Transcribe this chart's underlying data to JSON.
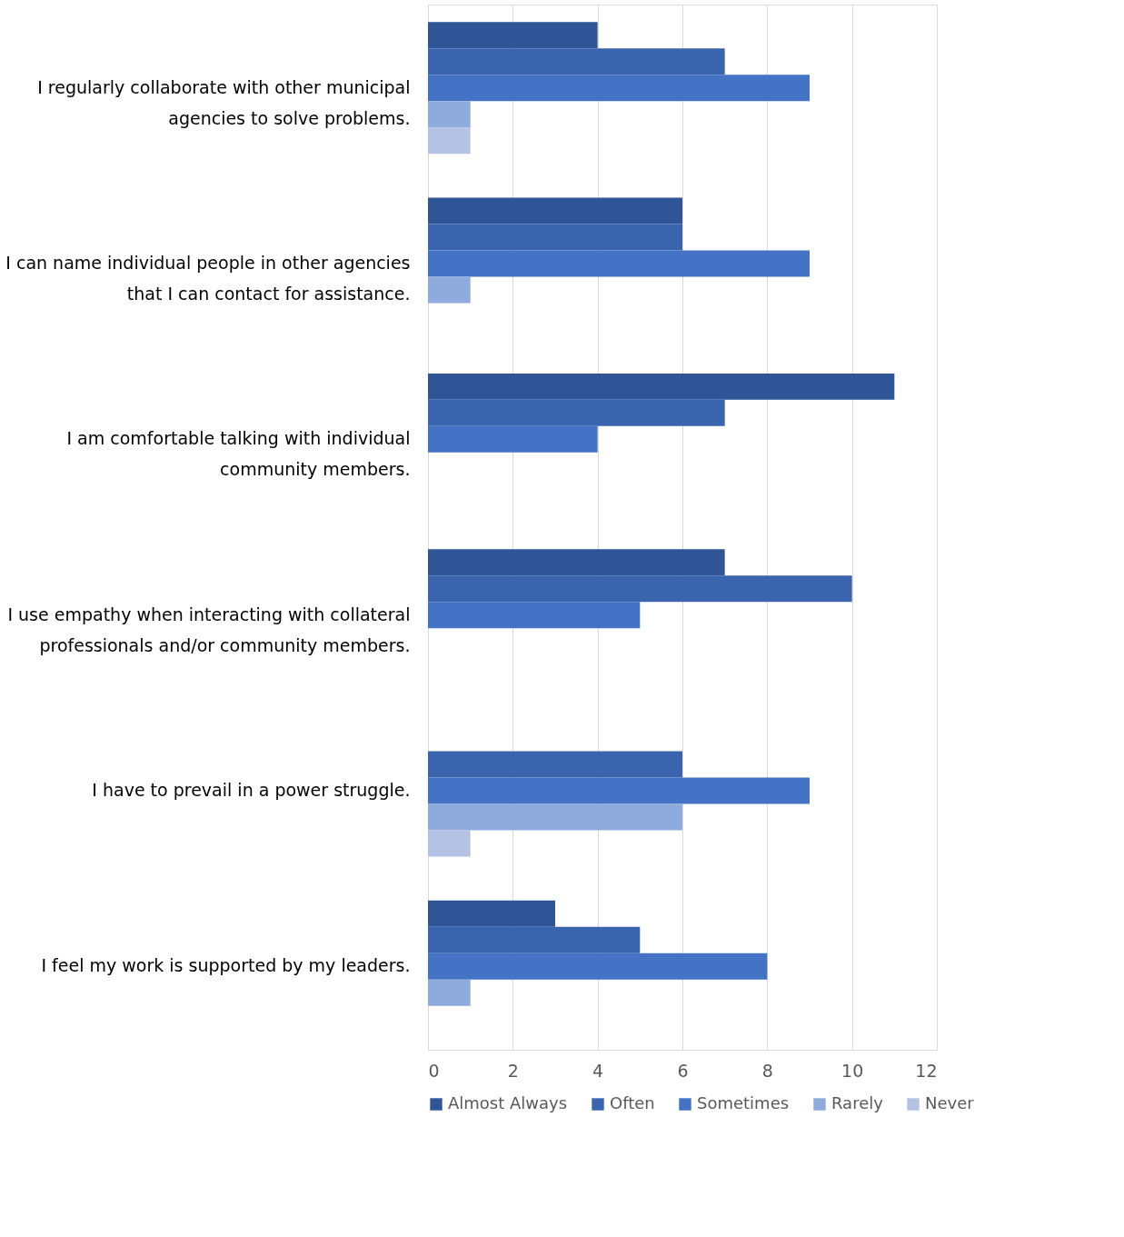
{
  "chart_data": {
    "type": "bar",
    "orientation": "horizontal",
    "categories": [
      "I regularly collaborate with other municipal agencies to solve problems.",
      "I can name individual people in other agencies that I can contact for assistance.",
      "I am comfortable talking with individual community members.",
      "I use empathy when interacting with collateral professionals and/or community members.",
      "I have to prevail in a power struggle.",
      "I feel my work is supported by my leaders."
    ],
    "series": [
      {
        "name": "Almost Always",
        "color": "#2f5597",
        "values": [
          4,
          6,
          11,
          7,
          0,
          3
        ]
      },
      {
        "name": "Often",
        "color": "#3a64ae",
        "values": [
          7,
          6,
          7,
          10,
          6,
          5
        ]
      },
      {
        "name": "Sometimes",
        "color": "#4472c4",
        "values": [
          9,
          9,
          4,
          5,
          9,
          8
        ]
      },
      {
        "name": "Rarely",
        "color": "#8faadc",
        "values": [
          1,
          1,
          0,
          0,
          6,
          1
        ]
      },
      {
        "name": "Never",
        "color": "#b4c2e4",
        "values": [
          1,
          0,
          0,
          0,
          1,
          0
        ]
      }
    ],
    "xlim": [
      0,
      12
    ],
    "xticks": [
      0,
      2,
      4,
      6,
      8,
      10,
      12
    ],
    "grid": "x",
    "legend": "bottom"
  }
}
